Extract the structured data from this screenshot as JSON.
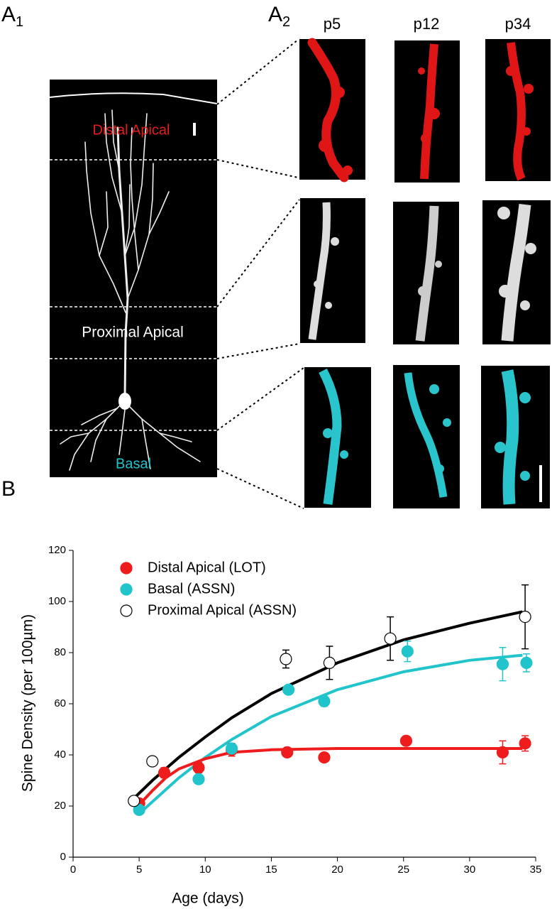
{
  "panel_a1": {
    "letter": "A",
    "sub": "1"
  },
  "panel_a2": {
    "letter": "A",
    "sub": "2"
  },
  "panel_b": "B",
  "ages": [
    "p5",
    "p12",
    "p34"
  ],
  "regions": {
    "distal": "Distal Apical",
    "proximal": "Proximal Apical",
    "basal": "Basal"
  },
  "chart_data": {
    "type": "scatter",
    "xlabel": "Age (days)",
    "ylabel": "Spine Density (per 100µm)",
    "xlim": [
      0,
      35
    ],
    "xticks": [
      0,
      5,
      10,
      15,
      20,
      25,
      30,
      35
    ],
    "ylim": [
      0,
      120
    ],
    "yticks": [
      0,
      20,
      40,
      60,
      80,
      100,
      120
    ],
    "legend": "upper left",
    "series": [
      {
        "name": "Distal Apical (LOT)",
        "color": "#ee1c1c",
        "fill": "#ee1c1c",
        "x": [
          5,
          6.9,
          9.5,
          12,
          16.2,
          19,
          25.2,
          32.5,
          34.2
        ],
        "values": [
          21,
          33,
          35,
          42,
          41,
          39,
          45.5,
          41,
          44.5
        ],
        "errors": [
          1,
          2,
          2,
          2.5,
          1,
          1,
          1,
          4.5,
          3
        ]
      },
      {
        "name": "Basal (ASSN)",
        "color": "#22c4cc",
        "fill": "#22c4cc",
        "x": [
          5,
          9.5,
          12,
          16.3,
          19,
          25.3,
          32.5,
          34.3
        ],
        "values": [
          18.5,
          30.5,
          42.5,
          65.5,
          61,
          80.5,
          75.5,
          76
        ],
        "errors": [
          1,
          1,
          1,
          1,
          2,
          4,
          6.5,
          3.5
        ]
      },
      {
        "name": "Proximal Apical (ASSN)",
        "color": "#000000",
        "fill": "#ffffff",
        "x": [
          4.6,
          6,
          16.1,
          19.4,
          24,
          34.2
        ],
        "values": [
          22,
          37.5,
          77.5,
          76,
          85.5,
          94
        ],
        "errors": [
          1,
          1,
          3.5,
          6.5,
          8.5,
          12.5
        ]
      }
    ],
    "fits": [
      {
        "color": "#000000",
        "x": [
          4.6,
          6,
          8,
          10,
          12,
          15,
          20,
          25,
          30,
          34
        ],
        "values": [
          23,
          30,
          39,
          47,
          54.5,
          64,
          76,
          85,
          91.5,
          96
        ]
      },
      {
        "color": "#22c4cc",
        "x": [
          5,
          8,
          10,
          12,
          15,
          20,
          25,
          30,
          34
        ],
        "values": [
          17,
          31,
          39,
          46,
          55,
          65.5,
          72.5,
          77,
          79
        ]
      },
      {
        "color": "#ee1c1c",
        "x": [
          5,
          6,
          7,
          8,
          10,
          12,
          15,
          20,
          25,
          34
        ],
        "values": [
          20.5,
          26,
          31,
          34.5,
          38.5,
          41,
          42,
          42.5,
          42.5,
          42.5
        ]
      }
    ]
  }
}
